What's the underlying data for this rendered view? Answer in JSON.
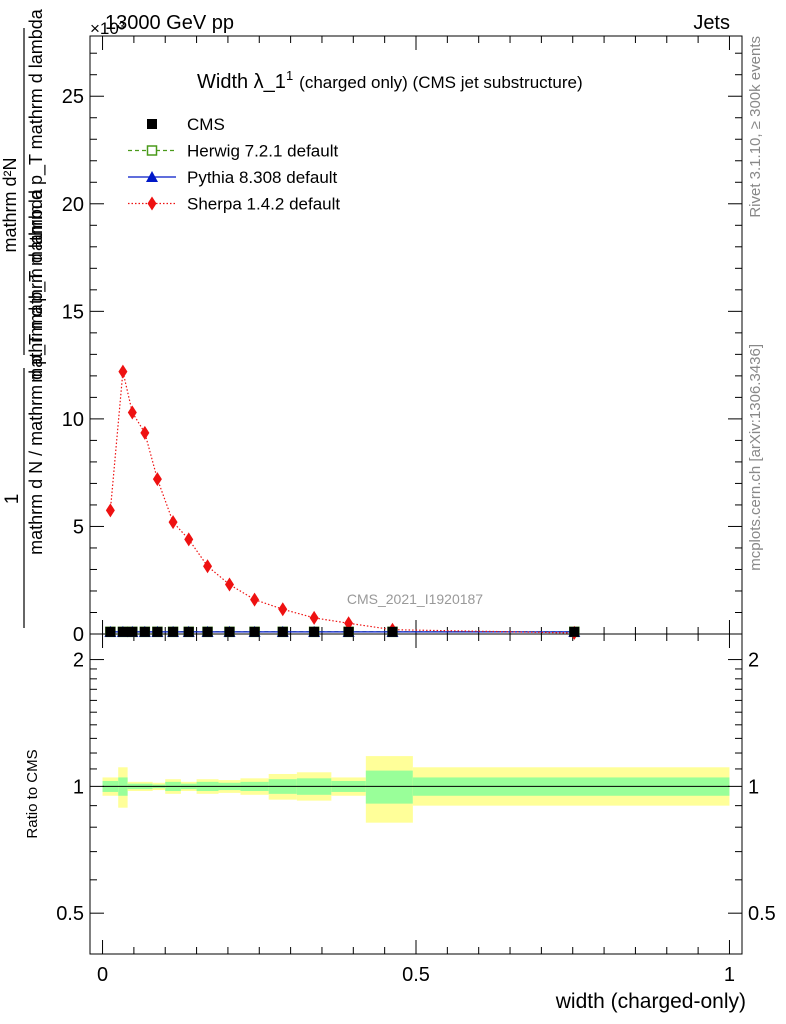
{
  "header": {
    "left": "13000 GeV pp",
    "right": "Jets",
    "exponent": "×10³",
    "ref_label": "CMS_2021_I1920187",
    "side_top": "Rivet 3.1.10, ≥ 300k events",
    "side_bottom": "mcplots.cern.ch [arXiv:1306.3436]"
  },
  "chart_data": [
    {
      "type": "line",
      "title": "Width λ_1¹ (charged only) (CMS jet substructure)",
      "title_main": "Width λ_1",
      "title_sup": "1",
      "title_rest": "(charged only) (CMS jet substructure)",
      "ylabel_numerator": "1",
      "ylabel_denominator": "mathrm d N / mathrm d p_T mathrm d lambda",
      "ylabel_fraction_top": "mathrm d²N",
      "ylabel_fraction_bottom": "mathrm d p_T mathrm d p_T mathrm d lambda",
      "y_multiplier": "×10³",
      "xlim": [
        -0.02,
        1.02
      ],
      "ylim": [
        0,
        27.8
      ],
      "yticks": [
        0,
        5,
        10,
        15,
        20,
        25
      ],
      "legend_position": "top-left",
      "x": [
        0.0125,
        0.0325,
        0.0475,
        0.0675,
        0.0875,
        0.1125,
        0.1375,
        0.1675,
        0.2025,
        0.2425,
        0.2875,
        0.3375,
        0.3925,
        0.4625,
        0.7525
      ],
      "series": [
        {
          "name": "CMS",
          "color": "#000000",
          "marker": "square-filled",
          "values": [
            0.1,
            0.1,
            0.1,
            0.1,
            0.1,
            0.1,
            0.1,
            0.1,
            0.1,
            0.1,
            0.1,
            0.1,
            0.1,
            0.1,
            0.1
          ]
        },
        {
          "name": "Herwig 7.2.1 default",
          "color": "#4a9a1a",
          "marker": "square-open",
          "dash": "4,3",
          "values": [
            0.1,
            0.1,
            0.1,
            0.1,
            0.1,
            0.1,
            0.1,
            0.1,
            0.1,
            0.1,
            0.1,
            0.1,
            0.1,
            0.1,
            0.1
          ]
        },
        {
          "name": "Pythia 8.308 default",
          "color": "#0018c8",
          "marker": "triangle",
          "dash": "",
          "values": [
            0.1,
            0.1,
            0.1,
            0.1,
            0.1,
            0.1,
            0.1,
            0.1,
            0.1,
            0.1,
            0.1,
            0.1,
            0.1,
            0.1,
            0.1
          ]
        },
        {
          "name": "Sherpa 1.4.2 default",
          "color": "#ee1111",
          "marker": "diamond",
          "dash": "1.5,2",
          "values": [
            5.75,
            12.2,
            10.3,
            9.35,
            7.2,
            5.2,
            4.4,
            3.15,
            2.3,
            1.6,
            1.15,
            0.75,
            0.5,
            0.2,
            0.05
          ]
        }
      ]
    },
    {
      "type": "area",
      "ylabel": "Ratio to CMS",
      "xlabel": "width (charged-only)",
      "xlim": [
        -0.02,
        1.02
      ],
      "ylim": [
        0.4,
        2.3
      ],
      "yticks": [
        0.5,
        1,
        2
      ],
      "xticks": [
        0,
        0.5,
        1
      ],
      "bins": [
        {
          "lo": 0.0,
          "hi": 0.025,
          "green": [
            0.97,
            1.03
          ],
          "yellow": [
            0.95,
            1.05
          ]
        },
        {
          "lo": 0.025,
          "hi": 0.04,
          "green": [
            0.95,
            1.05
          ],
          "yellow": [
            0.89,
            1.11
          ]
        },
        {
          "lo": 0.04,
          "hi": 0.055,
          "green": [
            0.985,
            1.015
          ],
          "yellow": [
            0.975,
            1.025
          ]
        },
        {
          "lo": 0.055,
          "hi": 0.08,
          "green": [
            0.985,
            1.015
          ],
          "yellow": [
            0.975,
            1.025
          ]
        },
        {
          "lo": 0.08,
          "hi": 0.1,
          "green": [
            0.99,
            1.01
          ],
          "yellow": [
            0.98,
            1.02
          ]
        },
        {
          "lo": 0.1,
          "hi": 0.125,
          "green": [
            0.975,
            1.025
          ],
          "yellow": [
            0.96,
            1.04
          ]
        },
        {
          "lo": 0.125,
          "hi": 0.15,
          "green": [
            0.985,
            1.015
          ],
          "yellow": [
            0.975,
            1.025
          ]
        },
        {
          "lo": 0.15,
          "hi": 0.185,
          "green": [
            0.975,
            1.025
          ],
          "yellow": [
            0.96,
            1.04
          ]
        },
        {
          "lo": 0.185,
          "hi": 0.22,
          "green": [
            0.98,
            1.02
          ],
          "yellow": [
            0.965,
            1.035
          ]
        },
        {
          "lo": 0.22,
          "hi": 0.265,
          "green": [
            0.975,
            1.025
          ],
          "yellow": [
            0.955,
            1.045
          ]
        },
        {
          "lo": 0.265,
          "hi": 0.31,
          "green": [
            0.96,
            1.04
          ],
          "yellow": [
            0.93,
            1.07
          ]
        },
        {
          "lo": 0.31,
          "hi": 0.365,
          "green": [
            0.955,
            1.045
          ],
          "yellow": [
            0.925,
            1.08
          ]
        },
        {
          "lo": 0.365,
          "hi": 0.42,
          "green": [
            0.97,
            1.03
          ],
          "yellow": [
            0.95,
            1.05
          ]
        },
        {
          "lo": 0.42,
          "hi": 0.495,
          "green": [
            0.91,
            1.09
          ],
          "yellow": [
            0.82,
            1.18
          ]
        },
        {
          "lo": 0.495,
          "hi": 1.0,
          "green": [
            0.95,
            1.05
          ],
          "yellow": [
            0.9,
            1.11
          ]
        }
      ],
      "reference": 1
    }
  ]
}
